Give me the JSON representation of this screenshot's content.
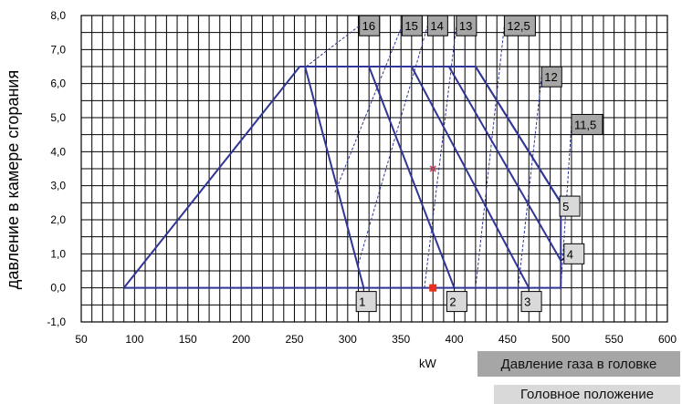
{
  "chart_data": {
    "type": "line",
    "xlabel": "kW",
    "ylabel": "давление в камере сгорания",
    "xlim": [
      50,
      600
    ],
    "ylim": [
      -1.0,
      8.0
    ],
    "x_ticks": [
      "50",
      "100",
      "150",
      "200",
      "250",
      "300",
      "350",
      "400",
      "450",
      "500",
      "550",
      "600"
    ],
    "y_ticks": [
      "-1,0",
      "0,0",
      "1,0",
      "2,0",
      "3,0",
      "4,0",
      "5,0",
      "6,0",
      "7,0",
      "8,0"
    ],
    "grid": true,
    "envelope": [
      [
        90,
        0.0
      ],
      [
        255,
        6.5
      ],
      [
        420,
        6.5
      ],
      [
        500,
        2.5
      ],
      [
        500,
        0.0
      ],
      [
        90,
        0.0
      ]
    ],
    "curves": [
      {
        "label": "1",
        "points": [
          [
            260,
            6.5
          ],
          [
            315,
            0.0
          ]
        ]
      },
      {
        "label": "2",
        "points": [
          [
            320,
            6.5
          ],
          [
            400,
            0.0
          ]
        ]
      },
      {
        "label": "3",
        "points": [
          [
            360,
            6.5
          ],
          [
            470,
            0.0
          ]
        ]
      },
      {
        "label": "4",
        "points": [
          [
            395,
            6.5
          ],
          [
            500,
            0.8
          ]
        ]
      },
      {
        "label": "5",
        "points": [
          [
            420,
            6.5
          ],
          [
            500,
            2.5
          ]
        ]
      }
    ],
    "head_positions": [
      {
        "label": "16",
        "points": [
          [
            261,
            6.5
          ],
          [
            311,
            7.7
          ]
        ]
      },
      {
        "label": "15",
        "points": [
          [
            288,
            2.8
          ],
          [
            351,
            7.7
          ]
        ]
      },
      {
        "label": "14",
        "points": [
          [
            310,
            0.7
          ],
          [
            375,
            7.7
          ]
        ]
      },
      {
        "label": "13",
        "points": [
          [
            372,
            0.0
          ],
          [
            402,
            7.7
          ]
        ]
      },
      {
        "label": "12,5",
        "points": [
          [
            420,
            0.0
          ],
          [
            447,
            7.7
          ]
        ]
      },
      {
        "label": "12",
        "points": [
          [
            460,
            0.0
          ],
          [
            482,
            6.2
          ]
        ]
      },
      {
        "label": "11,5",
        "points": [
          [
            500,
            0.0
          ],
          [
            510,
            4.8
          ]
        ]
      }
    ],
    "markers": [
      {
        "x": 380,
        "y": 0.0,
        "shape": "square",
        "color": "#e8301c"
      },
      {
        "x": 380,
        "y": 3.5,
        "shape": "cross",
        "color": "#d04060"
      }
    ],
    "line_color": "#2f3695",
    "label_fill_head": "#a6a6a6",
    "label_fill_curve": "#d9d9d9"
  },
  "legend": {
    "pressure": "Давление газа в головке",
    "position": "Головное положение"
  }
}
